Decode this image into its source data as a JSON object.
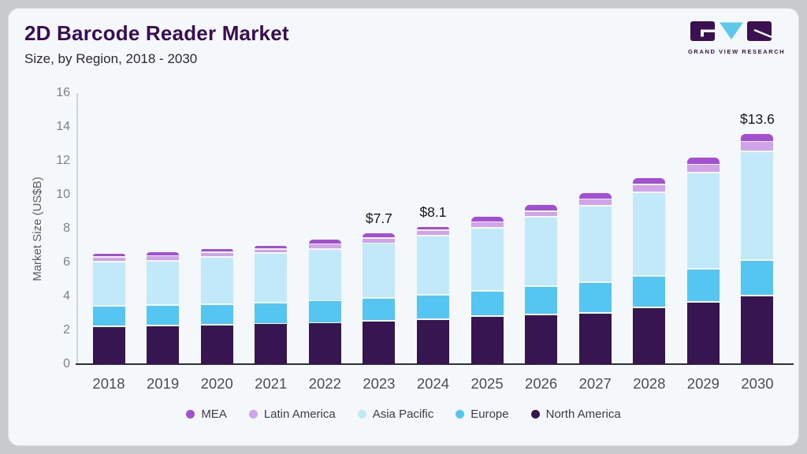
{
  "page": {
    "outer_background": "#c8cacd",
    "card_background": "#f5f8fa"
  },
  "header": {
    "title": "2D Barcode Reader Market",
    "subtitle": "Size, by Region, 2018 - 2030"
  },
  "logo": {
    "brand": "GRAND VIEW RESEARCH",
    "mark_dark_color": "#3b1152",
    "mark_blue_color": "#5ec7ea"
  },
  "chart_data": {
    "type": "bar",
    "stacked": true,
    "title": "2D Barcode Reader Market Size, by Region, 2018 - 2030",
    "ylabel": "Market Size (US$B)",
    "ylim": [
      0,
      16
    ],
    "yticks": [
      "0",
      "2",
      "4",
      "6",
      "8",
      "10",
      "12",
      "14",
      "16"
    ],
    "grid": false,
    "legend_position": "bottom",
    "categories": [
      "2018",
      "2019",
      "2020",
      "2021",
      "2022",
      "2023",
      "2024",
      "2025",
      "2026",
      "2027",
      "2028",
      "2029",
      "2030"
    ],
    "series": [
      {
        "name": "North America",
        "color": "#371550",
        "values": [
          2.2,
          2.25,
          2.3,
          2.35,
          2.4,
          2.5,
          2.6,
          2.8,
          2.9,
          3.0,
          3.3,
          3.65,
          4.0
        ]
      },
      {
        "name": "Europe",
        "color": "#55c6f2",
        "values": [
          1.2,
          1.2,
          1.2,
          1.25,
          1.3,
          1.35,
          1.45,
          1.5,
          1.65,
          1.8,
          1.85,
          1.95,
          2.1
        ]
      },
      {
        "name": "Asia Pacific",
        "color": "#c1e9f9",
        "values": [
          2.6,
          2.6,
          2.8,
          2.9,
          3.05,
          3.25,
          3.5,
          3.7,
          4.1,
          4.5,
          4.95,
          5.65,
          6.4
        ]
      },
      {
        "name": "Latin America",
        "color": "#d0a3ea",
        "values": [
          0.3,
          0.3,
          0.25,
          0.25,
          0.3,
          0.3,
          0.3,
          0.35,
          0.35,
          0.4,
          0.45,
          0.5,
          0.6
        ]
      },
      {
        "name": "MEA",
        "color": "#a24fd3",
        "values": [
          0.2,
          0.25,
          0.25,
          0.25,
          0.3,
          0.3,
          0.25,
          0.35,
          0.4,
          0.4,
          0.45,
          0.45,
          0.5
        ]
      }
    ],
    "totals": [
      6.5,
      6.6,
      6.8,
      7.0,
      7.35,
      7.7,
      8.1,
      8.7,
      9.4,
      10.1,
      11.0,
      12.2,
      13.6
    ],
    "annotations": [
      {
        "category": "2023",
        "text": "$7.7"
      },
      {
        "category": "2024",
        "text": "$8.1"
      },
      {
        "category": "2030",
        "text": "$13.6"
      }
    ],
    "legend": [
      {
        "label": "MEA",
        "color": "#a24fd3"
      },
      {
        "label": "Latin America",
        "color": "#d0a3ea"
      },
      {
        "label": "Asia Pacific",
        "color": "#c1e9f9"
      },
      {
        "label": "Europe",
        "color": "#55c6f2"
      },
      {
        "label": "North America",
        "color": "#371550"
      }
    ]
  }
}
